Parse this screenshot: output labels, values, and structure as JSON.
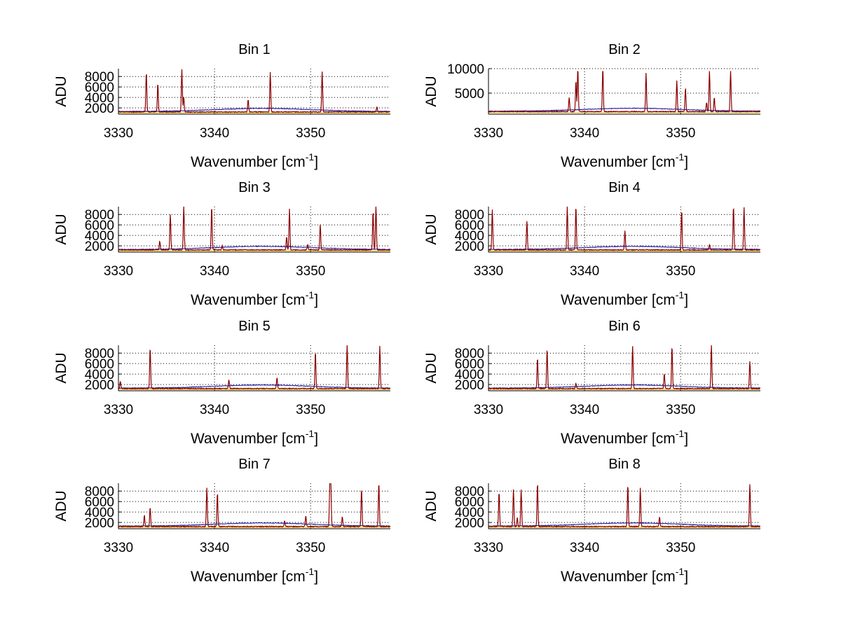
{
  "chart_data": {
    "type": "line",
    "layout": "4x2 subplots",
    "xlabel_text": "Wavenumber [cm",
    "xlabel_sup": "-1",
    "xlabel_close": "]",
    "ylabel": "ADU",
    "xlim": [
      3330,
      3358.3
    ],
    "xticks": [
      3330,
      3340,
      3350
    ],
    "grid": "dotted",
    "series_colors": {
      "baseline_low": "#e8c020",
      "reference": "#1a1aa0",
      "spectrum": "#8b0000"
    },
    "subplots": [
      {
        "title": "Bin 1",
        "ylim": [
          800,
          9500
        ],
        "yticks": [
          2000,
          4000,
          6000,
          8000
        ],
        "peaks": [
          [
            3332.9,
            8800
          ],
          [
            3334.1,
            6600
          ],
          [
            3336.6,
            9300
          ],
          [
            3336.8,
            4000
          ],
          [
            3343.5,
            3600
          ],
          [
            3345.8,
            8800
          ],
          [
            3351.2,
            8800
          ],
          [
            3356.9,
            2200
          ]
        ]
      },
      {
        "title": "Bin 2",
        "ylim": [
          700,
          10000
        ],
        "yticks": [
          5000,
          10000
        ],
        "peaks": [
          [
            3338.4,
            4000
          ],
          [
            3339.1,
            7500
          ],
          [
            3339.3,
            10000
          ],
          [
            3341.9,
            10000
          ],
          [
            3346.4,
            9000
          ],
          [
            3349.6,
            7500
          ],
          [
            3350.5,
            6000
          ],
          [
            3352.7,
            3000
          ],
          [
            3353.0,
            9500
          ],
          [
            3353.5,
            4000
          ],
          [
            3355.2,
            9500
          ]
        ]
      },
      {
        "title": "Bin 3",
        "ylim": [
          800,
          9500
        ],
        "yticks": [
          2000,
          4000,
          6000,
          8000
        ],
        "peaks": [
          [
            3334.3,
            2800
          ],
          [
            3335.4,
            8000
          ],
          [
            3336.8,
            9500
          ],
          [
            3339.7,
            9500
          ],
          [
            3340.8,
            2000
          ],
          [
            3347.5,
            3600
          ],
          [
            3347.8,
            9000
          ],
          [
            3349.7,
            2200
          ],
          [
            3351.0,
            6000
          ],
          [
            3356.5,
            8600
          ],
          [
            3356.8,
            9500
          ]
        ]
      },
      {
        "title": "Bin 4",
        "ylim": [
          800,
          9500
        ],
        "yticks": [
          2000,
          4000,
          6000,
          8000
        ],
        "peaks": [
          [
            3330.4,
            8800
          ],
          [
            3334.0,
            6600
          ],
          [
            3338.2,
            9500
          ],
          [
            3339.1,
            9500
          ],
          [
            3344.2,
            4800
          ],
          [
            3350.1,
            8800
          ],
          [
            3353.0,
            2200
          ],
          [
            3355.5,
            9500
          ],
          [
            3356.6,
            9300
          ]
        ]
      },
      {
        "title": "Bin 5",
        "ylim": [
          800,
          9500
        ],
        "yticks": [
          2000,
          4000,
          6000,
          8000
        ],
        "peaks": [
          [
            3330.2,
            2500
          ],
          [
            3333.3,
            9000
          ],
          [
            3341.5,
            2800
          ],
          [
            3346.5,
            3200
          ],
          [
            3350.5,
            8200
          ],
          [
            3353.8,
            9500
          ],
          [
            3357.2,
            9300
          ]
        ]
      },
      {
        "title": "Bin 6",
        "ylim": [
          800,
          9500
        ],
        "yticks": [
          2000,
          4000,
          6000,
          8000
        ],
        "peaks": [
          [
            3335.1,
            7000
          ],
          [
            3336.1,
            8800
          ],
          [
            3339.1,
            2200
          ],
          [
            3345.0,
            9300
          ],
          [
            3348.3,
            4000
          ],
          [
            3349.1,
            9300
          ],
          [
            3353.2,
            9500
          ],
          [
            3357.2,
            6300
          ]
        ]
      },
      {
        "title": "Bin 7",
        "ylim": [
          800,
          9500
        ],
        "yticks": [
          2000,
          4000,
          6000,
          8000
        ],
        "peaks": [
          [
            3332.7,
            3300
          ],
          [
            3333.3,
            4800
          ],
          [
            3339.2,
            8600
          ],
          [
            3340.3,
            7600
          ],
          [
            3347.3,
            2200
          ],
          [
            3349.5,
            3200
          ],
          [
            3352.0,
            8800
          ],
          [
            3352.1,
            9000
          ],
          [
            3353.3,
            3000
          ],
          [
            3355.3,
            8400
          ],
          [
            3357.1,
            9500
          ]
        ]
      },
      {
        "title": "Bin 8",
        "ylim": [
          800,
          9500
        ],
        "yticks": [
          2000,
          4000,
          6000,
          8000
        ],
        "peaks": [
          [
            3331.1,
            7800
          ],
          [
            3332.6,
            8200
          ],
          [
            3333.0,
            2800
          ],
          [
            3333.4,
            8200
          ],
          [
            3335.1,
            9500
          ],
          [
            3344.5,
            9200
          ],
          [
            3345.8,
            8600
          ],
          [
            3347.8,
            3000
          ],
          [
            3357.2,
            9300
          ]
        ]
      }
    ]
  }
}
